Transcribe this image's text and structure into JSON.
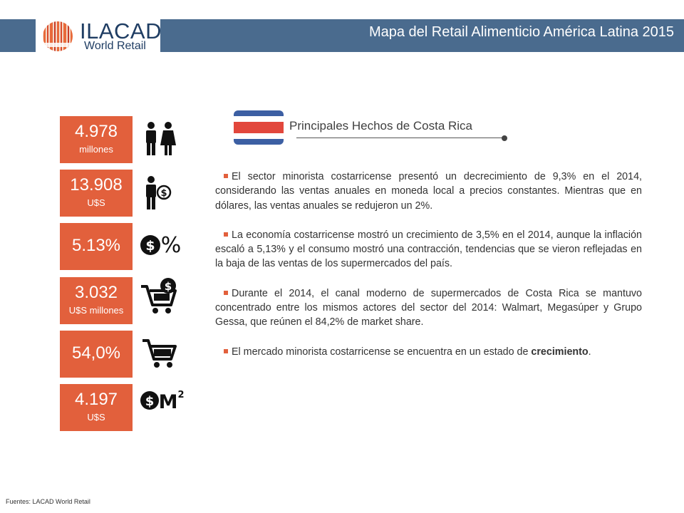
{
  "header": {
    "logo_title": "ILACAD",
    "logo_subtitle": "World Retail",
    "title": "Mapa del Retail Alimenticio América Latina 2015"
  },
  "stats": [
    {
      "value": "4.978",
      "unit": "millones",
      "icon": "people-icon"
    },
    {
      "value": "13.908",
      "unit": "U$S",
      "icon": "person-money-icon"
    },
    {
      "value": "5.13%",
      "unit": "",
      "icon": "dollar-percent-icon"
    },
    {
      "value": "3.032",
      "unit": "U$S millones",
      "icon": "cart-dollar-icon"
    },
    {
      "value": "54,0%",
      "unit": "",
      "icon": "cart-icon"
    },
    {
      "value": "4.197",
      "unit": "U$S",
      "icon": "dollar-m2-icon"
    }
  ],
  "section": {
    "title": "Principales Hechos de Costa Rica",
    "flag_colors": {
      "blue": "#3c5fa3",
      "white": "#ffffff",
      "red": "#e2473c"
    }
  },
  "facts": [
    {
      "text": "El sector minorista costarricense presentó un decrecimiento de 9,3% en el 2014, considerando las ventas anuales en moneda local a precios constantes. Mientras que en dólares, las ventas anuales se redujeron un 2%.",
      "bold": ""
    },
    {
      "text": "La economía costarricense mostró un crecimiento de 3,5% en el 2014, aunque la inflación escaló a 5,13% y el consumo mostró una contracción, tendencias que se vieron reflejadas en la baja de las ventas de los supermercados del país.",
      "bold": ""
    },
    {
      "text": "Durante el 2014, el canal moderno de supermercados de Costa Rica se mantuvo concentrado entre los mismos actores del sector del 2014: Walmart, Megasúper y Grupo Gessa, que reúnen el 84,2% de market share.",
      "bold": ""
    },
    {
      "text": "El mercado minorista costarricense se encuentra en un estado de ",
      "bold": "crecimiento",
      "tail": "."
    }
  ],
  "footer": {
    "source": "Fuentes: LACAD World Retail"
  },
  "colors": {
    "accent": "#e2603c",
    "header": "#4a6b8e",
    "logo_text": "#1f3d63"
  }
}
